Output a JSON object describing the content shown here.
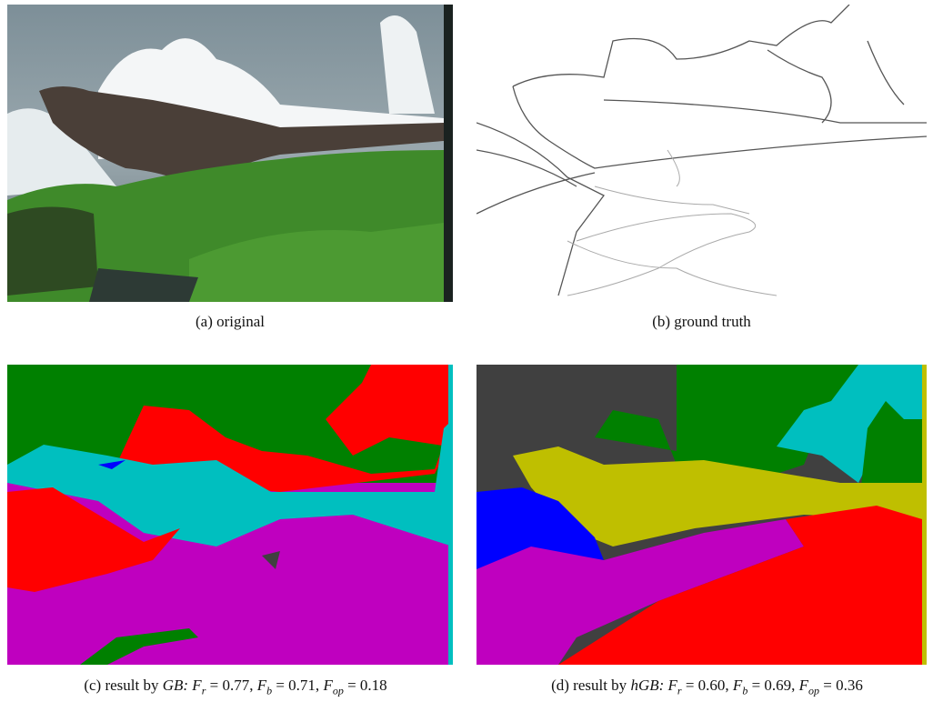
{
  "figure": {
    "panels": [
      {
        "caption": {
          "label": "(a) original"
        }
      },
      {
        "caption": {
          "label": "(b) ground truth"
        }
      },
      {
        "caption": {
          "label": "(c) result by",
          "method": "GB:",
          "metrics": [
            {
              "symbol": "F",
              "sub": "r",
              "value": "= 0.77,"
            },
            {
              "symbol": "F",
              "sub": "b",
              "value": "= 0.71,"
            },
            {
              "symbol": "F",
              "sub": "op",
              "value": "= 0.18"
            }
          ]
        }
      },
      {
        "caption": {
          "label": "(d) result by",
          "method": "hGB:",
          "metrics": [
            {
              "symbol": "F",
              "sub": "r",
              "value": "= 0.60,"
            },
            {
              "symbol": "F",
              "sub": "b",
              "value": "= 0.69,"
            },
            {
              "symbol": "F",
              "sub": "op",
              "value": "= 0.36"
            }
          ]
        }
      }
    ]
  }
}
